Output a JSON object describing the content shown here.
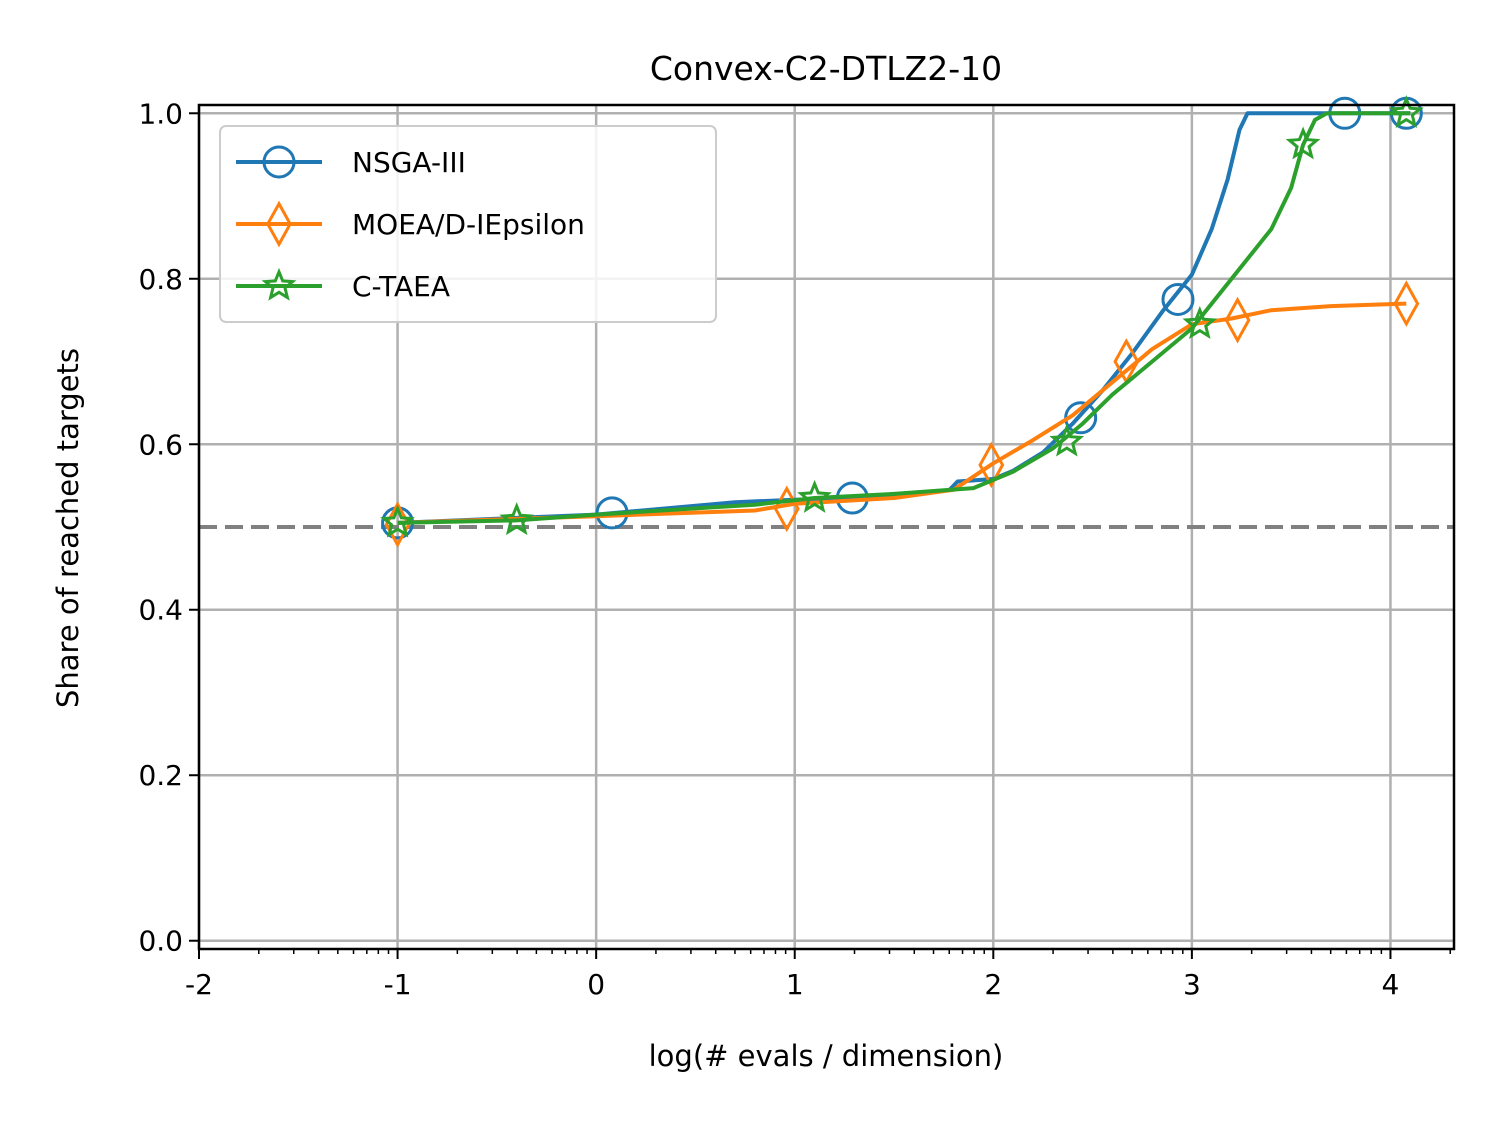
{
  "chart_data": {
    "type": "line",
    "title": "Convex-C2-DTLZ2-10",
    "xlabel": "log(# evals / dimension)",
    "ylabel": "Share of reached targets",
    "xlim": [
      -2,
      4.32
    ],
    "ylim": [
      -0.01,
      1.01
    ],
    "x_ticks": [
      -2,
      -1,
      0,
      1,
      2,
      3,
      4
    ],
    "x_tick_labels": [
      "-2",
      "-1",
      "0",
      "1",
      "2",
      "3",
      "4"
    ],
    "y_ticks": [
      0.0,
      0.2,
      0.4,
      0.6,
      0.8,
      1.0
    ],
    "y_tick_labels": [
      "0.0",
      "0.2",
      "0.4",
      "0.6",
      "0.8",
      "1.0"
    ],
    "grid": true,
    "legend_position": "top-left",
    "reference_line": {
      "y": 0.5,
      "style": "dashed",
      "color": "#808080"
    },
    "series": [
      {
        "name": "NSGA-III",
        "color": "#1f77b4",
        "marker": "circle",
        "points": [
          [
            -1.0,
            0.505
          ],
          [
            0.0,
            0.515
          ],
          [
            0.7,
            0.53
          ],
          [
            1.0,
            0.533
          ],
          [
            1.5,
            0.536
          ],
          [
            1.78,
            0.545
          ],
          [
            1.82,
            0.555
          ],
          [
            2.0,
            0.558
          ],
          [
            2.1,
            0.568
          ],
          [
            2.25,
            0.59
          ],
          [
            2.4,
            0.625
          ],
          [
            2.55,
            0.665
          ],
          [
            2.7,
            0.71
          ],
          [
            2.85,
            0.76
          ],
          [
            3.0,
            0.805
          ],
          [
            3.1,
            0.86
          ],
          [
            3.18,
            0.92
          ],
          [
            3.24,
            0.98
          ],
          [
            3.28,
            1.0
          ],
          [
            4.1,
            1.0
          ]
        ],
        "marker_points": [
          [
            -1.0,
            0.505
          ],
          [
            0.08,
            0.517
          ],
          [
            1.29,
            0.535
          ],
          [
            2.44,
            0.632
          ],
          [
            2.93,
            0.775
          ],
          [
            3.77,
            1.0
          ],
          [
            4.08,
            1.0
          ]
        ]
      },
      {
        "name": "MOEA/D-IEpsilon",
        "color": "#ff7f0e",
        "marker": "diamond",
        "points": [
          [
            -1.0,
            0.505
          ],
          [
            0.0,
            0.513
          ],
          [
            0.8,
            0.52
          ],
          [
            1.0,
            0.528
          ],
          [
            1.5,
            0.535
          ],
          [
            1.8,
            0.545
          ],
          [
            2.0,
            0.577
          ],
          [
            2.2,
            0.605
          ],
          [
            2.4,
            0.635
          ],
          [
            2.6,
            0.675
          ],
          [
            2.8,
            0.715
          ],
          [
            3.0,
            0.745
          ],
          [
            3.2,
            0.752
          ],
          [
            3.4,
            0.762
          ],
          [
            3.7,
            0.767
          ],
          [
            4.08,
            0.77
          ]
        ],
        "marker_points": [
          [
            -1.0,
            0.503
          ],
          [
            0.96,
            0.522
          ],
          [
            1.99,
            0.575
          ],
          [
            2.67,
            0.7
          ],
          [
            3.23,
            0.75
          ],
          [
            4.08,
            0.77
          ]
        ]
      },
      {
        "name": "C-TAEA",
        "color": "#2ca02c",
        "marker": "star",
        "points": [
          [
            -1.0,
            0.505
          ],
          [
            -0.4,
            0.508
          ],
          [
            0.0,
            0.515
          ],
          [
            0.8,
            0.527
          ],
          [
            1.1,
            0.535
          ],
          [
            1.5,
            0.54
          ],
          [
            1.9,
            0.547
          ],
          [
            2.1,
            0.567
          ],
          [
            2.3,
            0.595
          ],
          [
            2.45,
            0.625
          ],
          [
            2.6,
            0.66
          ],
          [
            2.8,
            0.7
          ],
          [
            3.0,
            0.74
          ],
          [
            3.2,
            0.8
          ],
          [
            3.4,
            0.86
          ],
          [
            3.5,
            0.91
          ],
          [
            3.56,
            0.962
          ],
          [
            3.62,
            0.992
          ],
          [
            3.68,
            1.0
          ],
          [
            4.1,
            1.0
          ]
        ],
        "marker_points": [
          [
            -1.0,
            0.505
          ],
          [
            -0.4,
            0.508
          ],
          [
            1.1,
            0.535
          ],
          [
            2.37,
            0.603
          ],
          [
            3.04,
            0.745
          ],
          [
            3.56,
            0.962
          ],
          [
            4.08,
            1.0
          ]
        ]
      }
    ]
  }
}
